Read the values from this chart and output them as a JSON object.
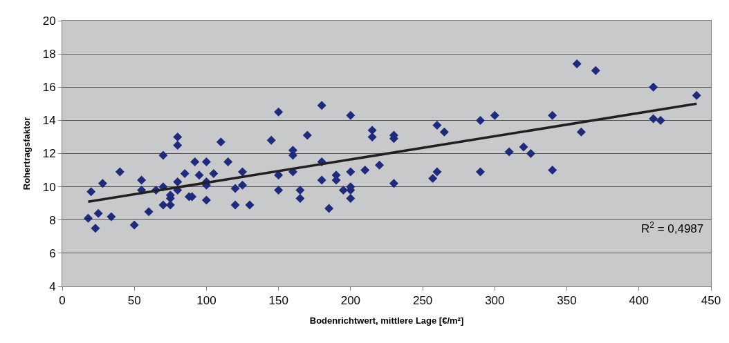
{
  "chart_data": {
    "type": "scatter",
    "xlabel": "Bodenrichtwert, mittlere Lage [€/m²]",
    "ylabel": "Rohertragsfaktor",
    "xlim": [
      0,
      450
    ],
    "xticks": [
      0,
      50,
      100,
      150,
      200,
      250,
      300,
      350,
      400,
      450
    ],
    "ylim": [
      4,
      20
    ],
    "yticks": [
      4,
      6,
      8,
      10,
      12,
      14,
      16,
      18,
      20
    ],
    "grid": "y",
    "marker": "diamond",
    "annotations": [
      "R$^{2}$ = 0,4987"
    ],
    "series": [
      {
        "color": "#1f2a7c",
        "x": [
          18,
          20,
          23,
          25,
          28,
          34,
          40,
          50,
          55,
          55,
          60,
          65,
          70,
          70,
          70,
          75,
          75,
          75,
          80,
          80,
          80,
          80,
          85,
          88,
          90,
          92,
          95,
          100,
          100,
          100,
          100,
          105,
          110,
          115,
          120,
          120,
          125,
          125,
          130,
          145,
          150,
          150,
          150,
          160,
          160,
          160,
          165,
          165,
          170,
          180,
          180,
          180,
          185,
          190,
          190,
          195,
          200,
          200,
          200,
          200,
          200,
          210,
          215,
          215,
          220,
          230,
          230,
          230,
          257,
          260,
          260,
          265,
          290,
          290,
          300,
          310,
          320,
          325,
          340,
          340,
          357,
          360,
          370,
          410,
          410,
          415,
          440
        ],
        "values": [
          8.1,
          9.7,
          7.5,
          8.4,
          10.2,
          8.2,
          10.9,
          7.7,
          10.4,
          9.8,
          8.5,
          9.8,
          11.9,
          10,
          8.9,
          9.5,
          8.9,
          9.3,
          13,
          12.5,
          10.3,
          9.8,
          10.8,
          9.4,
          9.4,
          11.5,
          10.7,
          11.5,
          10.3,
          10.1,
          9.2,
          10.8,
          12.7,
          11.5,
          9.9,
          8.9,
          10.9,
          10.1,
          8.9,
          12.8,
          14.5,
          10.7,
          9.8,
          12.2,
          11.9,
          10.9,
          9.8,
          9.3,
          13.1,
          14.9,
          11.5,
          10.4,
          8.7,
          10.7,
          10.4,
          9.8,
          14.3,
          10.9,
          10,
          9.8,
          9.3,
          11,
          13.4,
          13,
          11.3,
          13.1,
          12.9,
          10.2,
          10.5,
          13.7,
          10.9,
          13.3,
          14,
          10.9,
          14.3,
          12.1,
          12.4,
          12,
          14.3,
          11,
          17.4,
          13.3,
          17,
          16,
          14.1,
          14,
          15.5
        ]
      },
      {
        "type": "line",
        "marker": "none",
        "color": "#231f20",
        "x": [
          18,
          440
        ],
        "values": [
          9.1,
          15.0
        ]
      }
    ]
  }
}
